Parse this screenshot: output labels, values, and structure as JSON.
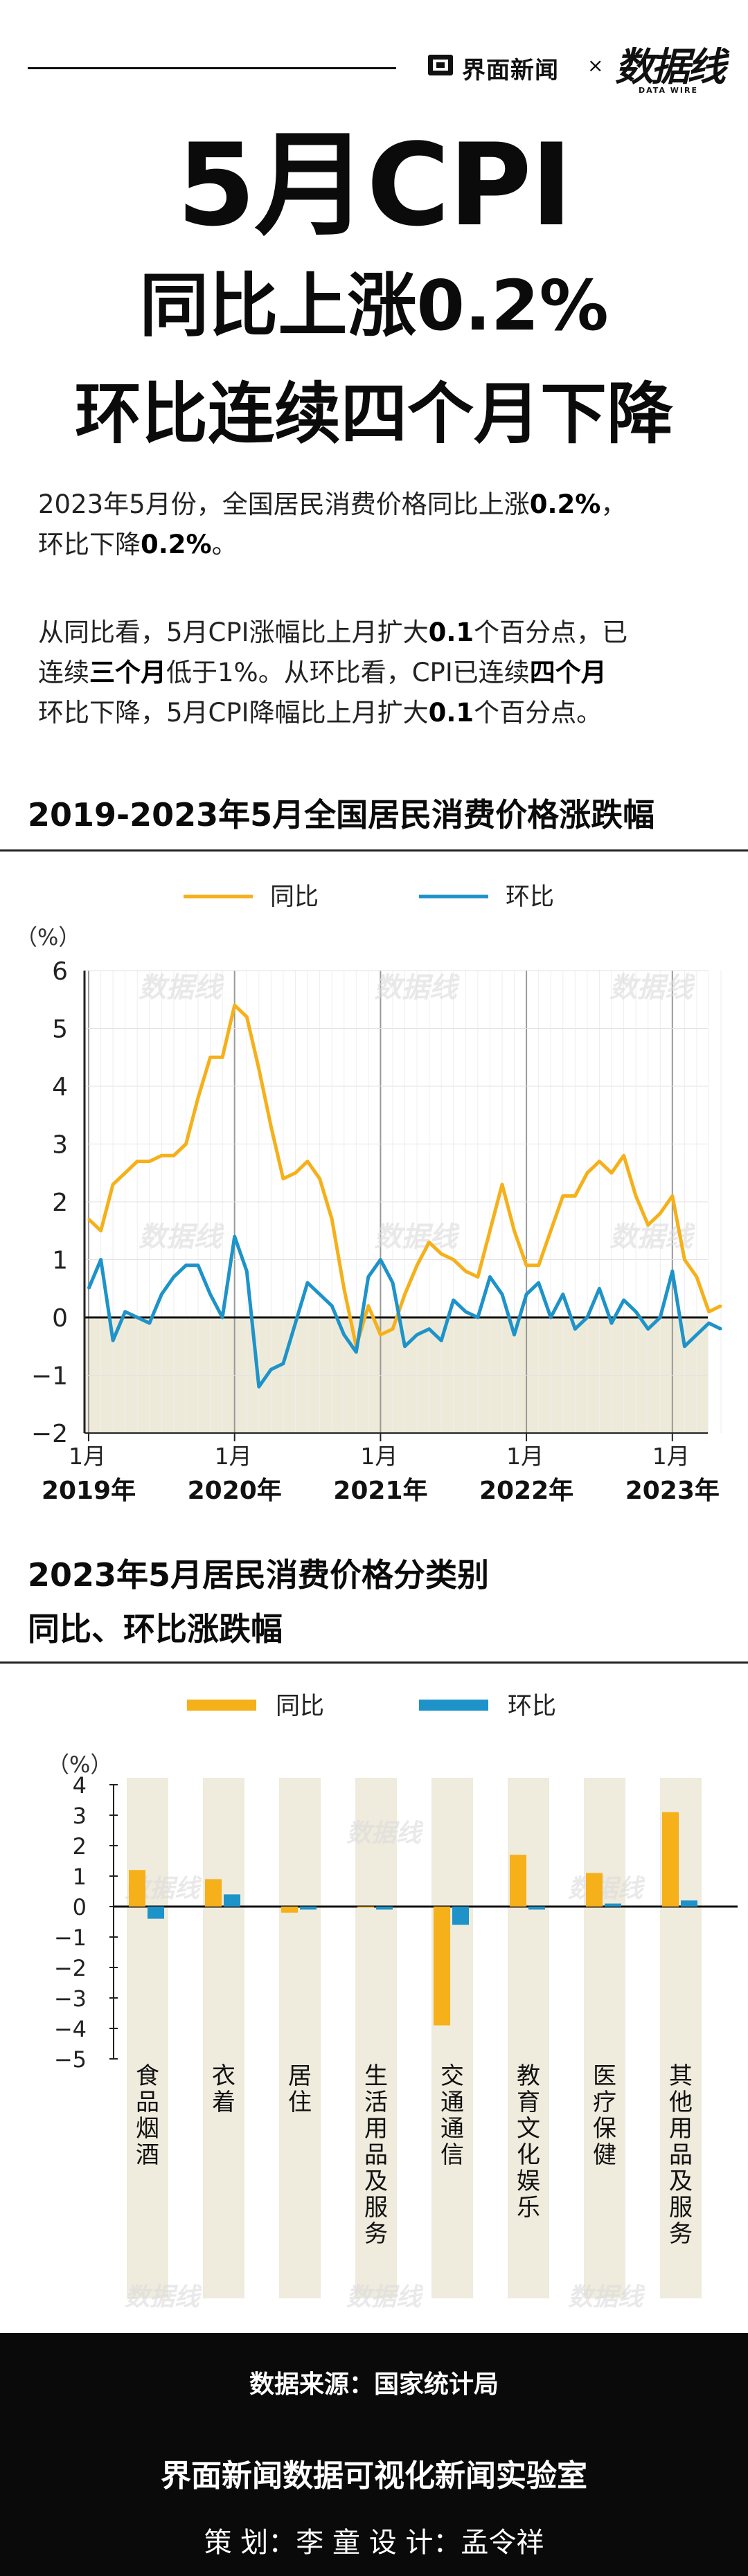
{
  "header": {
    "brand": "界面新闻",
    "times": "×",
    "partner": "数据线",
    "partner_sub": "DATA WIRE"
  },
  "title": {
    "line1": "5月CPI",
    "line2": "同比上涨0.2%",
    "line3": "环比连续四个月下降"
  },
  "paragraphs": [
    [
      {
        "t": "2023年5月份，全国居民消费价格同比上涨",
        "b": false
      },
      {
        "t": "0.2%",
        "b": true
      },
      {
        "t": "，",
        "b": false
      },
      {
        "t": "\n环比下降",
        "b": false
      },
      {
        "t": "0.2%",
        "b": true
      },
      {
        "t": "。",
        "b": false
      }
    ],
    [
      {
        "t": "从同比看，5月CPI涨幅比上月扩大",
        "b": false
      },
      {
        "t": "0.1",
        "b": true
      },
      {
        "t": "个百分点，已",
        "b": false
      },
      {
        "t": "\n连续",
        "b": false
      },
      {
        "t": "三个月",
        "b": true
      },
      {
        "t": "低于1%。从环比看，CPI已连续",
        "b": false
      },
      {
        "t": "四个月",
        "b": true
      },
      {
        "t": "\n环比下降，5月CPI降幅比上月扩大",
        "b": false
      },
      {
        "t": "0.1",
        "b": true
      },
      {
        "t": "个百分点。",
        "b": false
      }
    ]
  ],
  "colors": {
    "yoy": "#F5B01A",
    "mom": "#1E93C9",
    "shade": "#EEEAD9",
    "bar_bg": "#EFEBDD",
    "footer_bg": "#0a0a0a"
  },
  "chart_data": [
    {
      "type": "line",
      "title": "2019-2023年5月全国居民消费价格涨跌幅",
      "unit": "（%）",
      "ylim": [
        -2,
        6
      ],
      "yticks": [
        "6",
        "5",
        "4",
        "3",
        "2",
        "1",
        "0",
        "−1",
        "−2"
      ],
      "x_ticks": [
        {
          "month": "1月",
          "year": "2019年"
        },
        {
          "month": "1月",
          "year": "2020年"
        },
        {
          "month": "1月",
          "year": "2021年"
        },
        {
          "month": "1月",
          "year": "2022年"
        },
        {
          "month": "1月",
          "year": "2023年"
        }
      ],
      "x_start": "2019-01",
      "series": [
        {
          "name": "同比",
          "key": "yoy",
          "values": [
            1.7,
            1.5,
            2.3,
            2.5,
            2.7,
            2.7,
            2.8,
            2.8,
            3.0,
            3.8,
            4.5,
            4.5,
            5.4,
            5.2,
            4.3,
            3.3,
            2.4,
            2.5,
            2.7,
            2.4,
            1.7,
            0.5,
            -0.5,
            0.2,
            -0.3,
            -0.2,
            0.4,
            0.9,
            1.3,
            1.1,
            1.0,
            0.8,
            0.7,
            1.5,
            2.3,
            1.5,
            0.9,
            0.9,
            1.5,
            2.1,
            2.1,
            2.5,
            2.7,
            2.5,
            2.8,
            2.1,
            1.6,
            1.8,
            2.1,
            1.0,
            0.7,
            0.1,
            0.2
          ]
        },
        {
          "name": "环比",
          "key": "mom",
          "values": [
            0.5,
            1.0,
            -0.4,
            0.1,
            0.0,
            -0.1,
            0.4,
            0.7,
            0.9,
            0.9,
            0.4,
            0.0,
            1.4,
            0.8,
            -1.2,
            -0.9,
            -0.8,
            -0.1,
            0.6,
            0.4,
            0.2,
            -0.3,
            -0.6,
            0.7,
            1.0,
            0.6,
            -0.5,
            -0.3,
            -0.2,
            -0.4,
            0.3,
            0.1,
            0.0,
            0.7,
            0.4,
            -0.3,
            0.4,
            0.6,
            0.0,
            0.4,
            -0.2,
            0.0,
            0.5,
            -0.1,
            0.3,
            0.1,
            -0.2,
            0.0,
            0.8,
            -0.5,
            -0.3,
            -0.1,
            -0.2
          ]
        }
      ],
      "legend": "top-center"
    },
    {
      "type": "bar",
      "title_lines": [
        "2023年5月居民消费价格分类别",
        "同比、环比涨跌幅"
      ],
      "unit": "（%）",
      "ylim": [
        -5,
        4
      ],
      "yticks": [
        "4",
        "3",
        "2",
        "1",
        "0",
        "−1",
        "−2",
        "−3",
        "−4",
        "−5"
      ],
      "categories": [
        "食品烟酒",
        "衣着",
        "居住",
        "生活用品及服务",
        "交通通信",
        "教育文化娱乐",
        "医疗保健",
        "其他用品及服务"
      ],
      "series": [
        {
          "name": "同比",
          "key": "yoy",
          "values": [
            1.2,
            0.9,
            -0.2,
            0.0,
            -3.9,
            1.7,
            1.1,
            3.1
          ]
        },
        {
          "name": "环比",
          "key": "mom",
          "values": [
            -0.4,
            0.4,
            -0.1,
            -0.1,
            -0.6,
            -0.1,
            0.1,
            0.2
          ]
        }
      ],
      "legend": "top-center"
    }
  ],
  "footer": {
    "source": "数据来源：国家统计局",
    "lab": "界面新闻数据可视化新闻实验室",
    "credits": "策  划：李  童      设  计：孟令祥"
  }
}
